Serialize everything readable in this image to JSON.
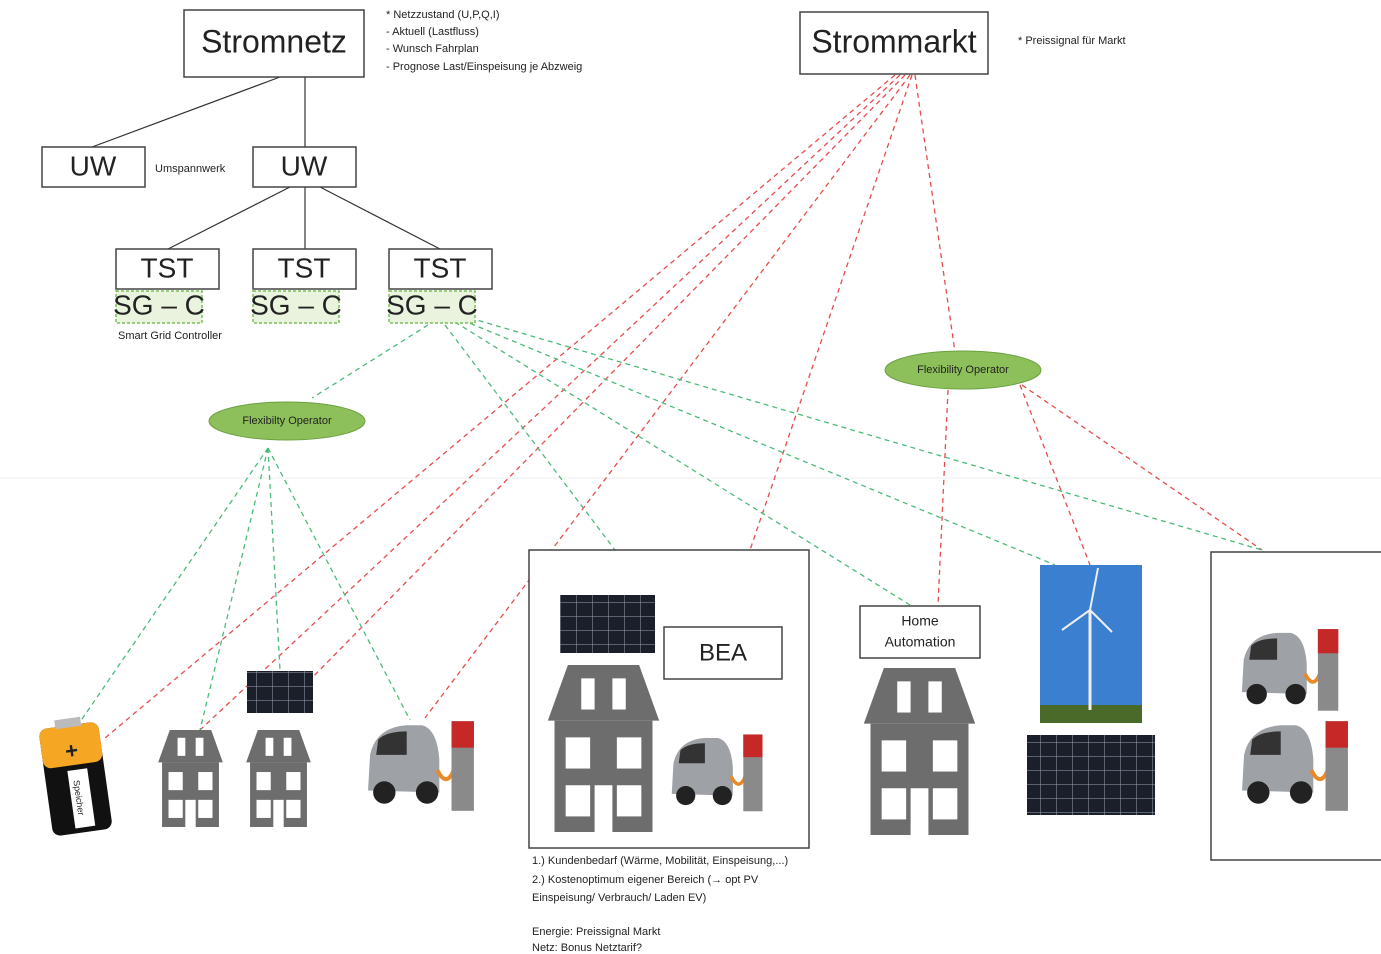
{
  "stromnetz": {
    "label": "Stromnetz",
    "notes": [
      "* Netzzustand (U,P,Q,I)",
      "- Aktuell (Lastfluss)",
      "- Wunsch Fahrplan",
      "- Prognose Last/Einspeisung je Abzweig"
    ]
  },
  "strommarkt": {
    "label": "Strommarkt",
    "note": "* Preissignal für Markt"
  },
  "uw": [
    "UW",
    "UW"
  ],
  "uw_note": "Umspannwerk",
  "tst": [
    "TST",
    "TST",
    "TST"
  ],
  "sgc": [
    "SG – C",
    "SG – C",
    "SG – C"
  ],
  "sgc_note": "Smart Grid Controller",
  "flex_left": "Flexibilty Operator",
  "flex_right": "Flexibility Operator",
  "bea": "BEA",
  "home_automation": [
    "Home",
    "Automation"
  ],
  "battery": {
    "sign": "+",
    "label": "Speicher"
  },
  "notes": [
    "1.) Kundenbedarf (Wärme, Mobilität, Einspeisung,...)",
    "2.) Kostenoptimum eigener Bereich (→ opt PV",
    "Einspeisung/ Verbrauch/ Laden EV)",
    "Energie: Preissignal Markt",
    "Netz: Bonus Netztarif?"
  ]
}
